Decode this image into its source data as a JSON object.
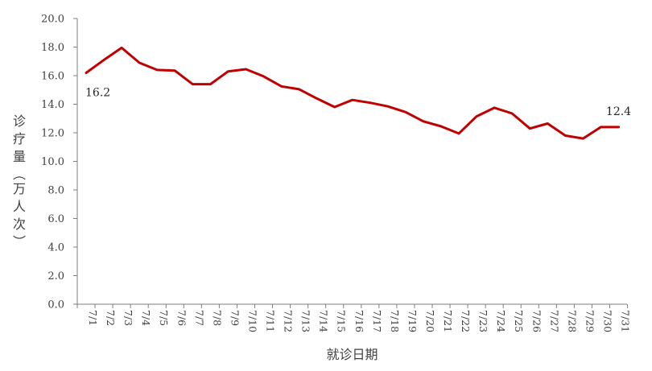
{
  "chart_data": {
    "type": "line",
    "xlabel": "就诊日期",
    "ylabel": "诊疗量（万人次）",
    "ylim": [
      0,
      20
    ],
    "ytick_step": 2,
    "yticks": [
      "0.0",
      "2.0",
      "4.0",
      "6.0",
      "8.0",
      "10.0",
      "12.0",
      "14.0",
      "16.0",
      "18.0",
      "20.0"
    ],
    "grid": false,
    "categories": [
      "7/1",
      "7/2",
      "7/3",
      "7/4",
      "7/5",
      "7/6",
      "7/7",
      "7/8",
      "7/9",
      "7/10",
      "7/11",
      "7/12",
      "7/13",
      "7/14",
      "7/15",
      "7/16",
      "7/17",
      "7/18",
      "7/19",
      "7/20",
      "7/21",
      "7/22",
      "7/23",
      "7/24",
      "7/25",
      "7/26",
      "7/27",
      "7/28",
      "7/29",
      "7/30",
      "7/31"
    ],
    "series": [
      {
        "color": "#c00000",
        "values": [
          16.2,
          17.1,
          17.95,
          16.9,
          16.4,
          16.35,
          15.4,
          15.4,
          16.3,
          16.45,
          15.95,
          15.25,
          15.05,
          14.4,
          13.8,
          14.3,
          14.1,
          13.85,
          13.45,
          12.8,
          12.45,
          11.95,
          13.15,
          13.75,
          13.35,
          12.3,
          12.65,
          11.8,
          11.6,
          12.4,
          12.4
        ]
      }
    ],
    "annotations": [
      {
        "index": 0,
        "text": "16.2"
      },
      {
        "index": 30,
        "text": "12.4"
      }
    ]
  }
}
